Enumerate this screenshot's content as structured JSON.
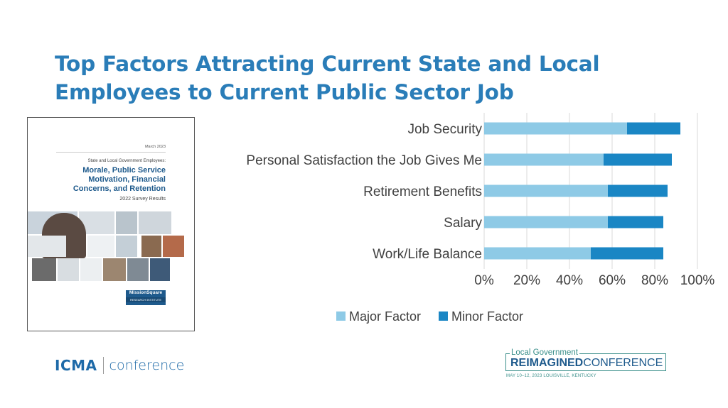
{
  "slide": {
    "title": "Top Factors Attracting Current State and Local Employees to Current Public Sector Job"
  },
  "report_cover": {
    "date": "March 2023",
    "subtitle": "State and Local Government Employees:",
    "title": "Morale, Public Service Motivation, Financial Concerns, and Retention",
    "survey": "2022 Survey Results",
    "brand": "MissionSquare",
    "brand_sub": "RESEARCH INSTITUTE"
  },
  "footer": {
    "icma_logo": "ICMA",
    "icma_conference": "conference",
    "conf_line1": "Local Government",
    "conf_line2_bold": "REIMAGINED",
    "conf_line2_rest": "CONFERENCE",
    "conf_line3": "MAY 10–12, 2023   LOUISVILLE, KENTUCKY"
  },
  "colors": {
    "title": "#2a7db8",
    "major": "#8ecae6",
    "minor": "#1a86c4",
    "gridline": "#d9d9d9"
  },
  "chart_data": {
    "type": "bar",
    "orientation": "horizontal",
    "stacked": true,
    "categories": [
      "Job Security",
      "Personal Satisfaction the Job Gives Me",
      "Retirement Benefits",
      "Salary",
      "Work/Life Balance"
    ],
    "series": [
      {
        "name": "Major Factor",
        "values": [
          67,
          56,
          58,
          58,
          50
        ]
      },
      {
        "name": "Minor Factor",
        "values": [
          25,
          32,
          28,
          26,
          34
        ]
      }
    ],
    "xlim": [
      0,
      100
    ],
    "x_ticks": [
      "0%",
      "20%",
      "40%",
      "60%",
      "80%",
      "100%"
    ],
    "grid": true,
    "legend_position": "bottom"
  }
}
